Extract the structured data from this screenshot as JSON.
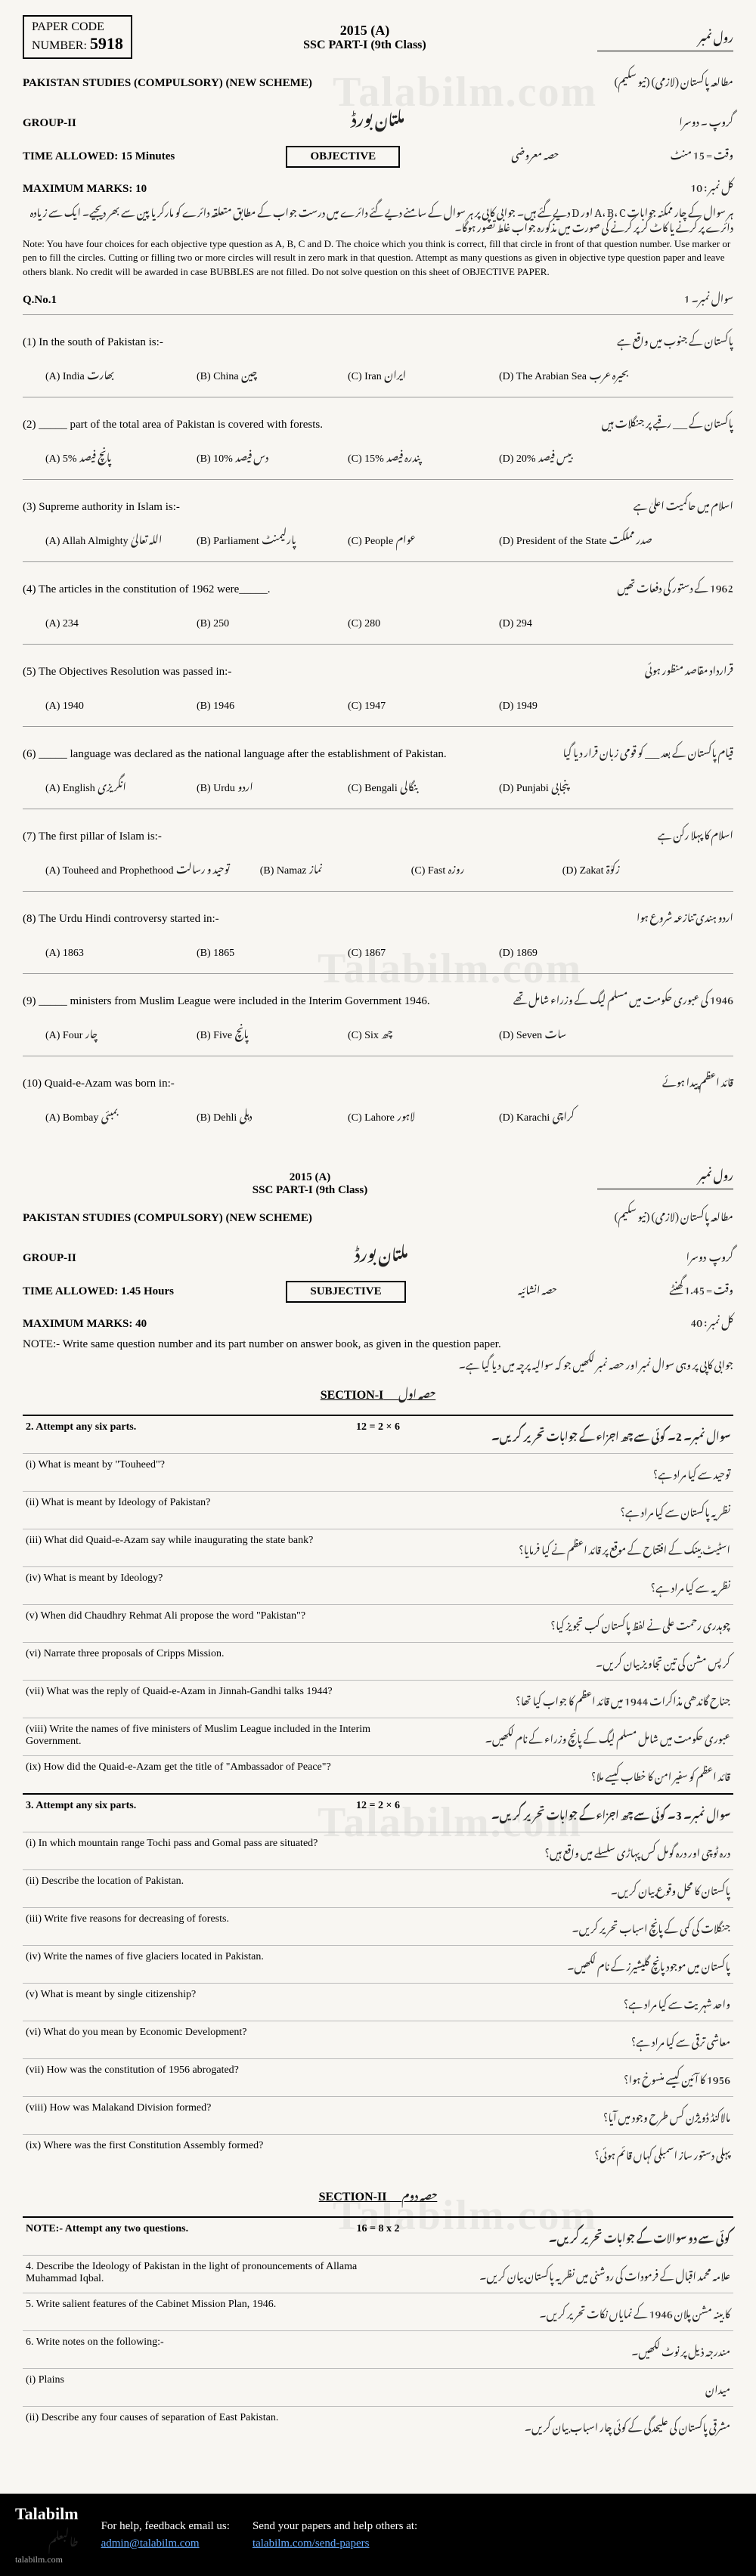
{
  "watermark_text": "Talabilm.com",
  "header": {
    "paper_code_label": "PAPER CODE",
    "number_label": "NUMBER:",
    "number": "5918",
    "year": "2015 (A)",
    "class": "SSC PART-I (9th Class)",
    "roll_label": "رول نمبر"
  },
  "objective": {
    "subject": "PAKISTAN STUDIES (COMPULSORY) (NEW SCHEME)",
    "subject_ur": "مطالعہ پاکستان (لازمی) (نیو سکیم)",
    "group": "GROUP-II",
    "group_ur": "گروپ ۔ دوسرا",
    "board_ur": "ملتان بورڈ",
    "time": "TIME ALLOWED: 15 Minutes",
    "time_ur": "وقت = 15 منٹ",
    "part_label": "OBJECTIVE",
    "part_ur": "حصہ معروضی",
    "marks": "MAXIMUM MARKS: 10",
    "marks_ur": "کل نمبر : 10",
    "note_ur": "ہر سوال کے چار ممکنہ جوابات A، B، C اور D دیے گئے ہیں۔ جوابی کاپی پر ہر سوال کے سامنے دیے گئے دائرے میں درست جواب کے مطابق متعلقہ دائرے کو مارکر یا پین سے بھر دیجیے۔ ایک سے زیادہ دائرے پر کرنے یا کاٹ کر پر کرنے کی صورت میں مذکورہ جواب غلط تصور ہوگا۔",
    "note_en": "Note: You have four choices for each objective type question as A, B, C and D. The choice which you think is correct, fill that circle in front of that question number. Use marker or pen to fill the circles. Cutting or filling two or more circles will result in zero mark in that question. Attempt as many questions as given in objective type question paper and leave others blank. No credit will be awarded in case BUBBLES are not filled. Do not solve question on this sheet of OBJECTIVE PAPER.",
    "qno": "Q.No.1",
    "qno_ur": "سوال نمبر۔ 1",
    "questions": [
      {
        "n": "(1)",
        "stem_en": "In the south of Pakistan is:-",
        "stem_ur": "پاکستان کے جنوب میں واقع ہے",
        "opts": [
          {
            "l": "(A) India",
            "u": "بھارت"
          },
          {
            "l": "(B) China",
            "u": "چین"
          },
          {
            "l": "(C) Iran",
            "u": "ایران"
          },
          {
            "l": "(D) The Arabian Sea",
            "u": "بحیرہ عرب"
          }
        ]
      },
      {
        "n": "(2)",
        "stem_en": "_____ part of the total area of Pakistan is covered with forests.",
        "stem_ur": "پاکستان کے ___ رقبے پر جنگلات ہیں",
        "opts": [
          {
            "l": "(A) 5%",
            "u": "پانچ فیصد"
          },
          {
            "l": "(B) 10%",
            "u": "دس فیصد"
          },
          {
            "l": "(C) 15%",
            "u": "پندرہ فیصد"
          },
          {
            "l": "(D) 20%",
            "u": "بیس فیصد"
          }
        ]
      },
      {
        "n": "(3)",
        "stem_en": "Supreme authority in Islam is:-",
        "stem_ur": "اسلام میں حاکمیت اعلیٰ ہے",
        "opts": [
          {
            "l": "(A) Allah Almighty",
            "u": "اللہ تعالیٰ"
          },
          {
            "l": "(B) Parliament",
            "u": "پارلیمنٹ"
          },
          {
            "l": "(C) People",
            "u": "عوام"
          },
          {
            "l": "(D) President of the State",
            "u": "صدر مملکت"
          }
        ]
      },
      {
        "n": "(4)",
        "stem_en": "The articles in the constitution of 1962 were_____.",
        "stem_ur": "1962 کے دستور کی دفعات تھیں",
        "opts": [
          {
            "l": "(A) 234",
            "u": ""
          },
          {
            "l": "(B) 250",
            "u": ""
          },
          {
            "l": "(C) 280",
            "u": ""
          },
          {
            "l": "(D) 294",
            "u": ""
          }
        ]
      },
      {
        "n": "(5)",
        "stem_en": "The Objectives Resolution was passed in:-",
        "stem_ur": "قرارداد مقاصد منظور ہوئی",
        "opts": [
          {
            "l": "(A) 1940",
            "u": ""
          },
          {
            "l": "(B) 1946",
            "u": ""
          },
          {
            "l": "(C) 1947",
            "u": ""
          },
          {
            "l": "(D) 1949",
            "u": ""
          }
        ]
      },
      {
        "n": "(6)",
        "stem_en": "_____ language was declared as the national language after the establishment of Pakistan.",
        "stem_ur": "قیام پاکستان کے بعد ___ کو قومی زبان قرار دیا گیا",
        "opts": [
          {
            "l": "(A) English",
            "u": "انگریزی"
          },
          {
            "l": "(B) Urdu",
            "u": "اردو"
          },
          {
            "l": "(C) Bengali",
            "u": "بنگالی"
          },
          {
            "l": "(D) Punjabi",
            "u": "پنجابی"
          }
        ]
      },
      {
        "n": "(7)",
        "stem_en": "The first pillar of Islam is:-",
        "stem_ur": "اسلام کا پہلا رکن ہے",
        "opts": [
          {
            "l": "(A) Touheed and Prophethood",
            "u": "توحید و رسالت"
          },
          {
            "l": "(B) Namaz",
            "u": "نماز"
          },
          {
            "l": "(C) Fast",
            "u": "روزہ"
          },
          {
            "l": "(D) Zakat",
            "u": "زکوٰۃ"
          }
        ]
      },
      {
        "n": "(8)",
        "stem_en": "The Urdu Hindi controversy started in:-",
        "stem_ur": "اردو ہندی تنازعہ شروع ہوا",
        "opts": [
          {
            "l": "(A) 1863",
            "u": ""
          },
          {
            "l": "(B) 1865",
            "u": ""
          },
          {
            "l": "(C) 1867",
            "u": ""
          },
          {
            "l": "(D) 1869",
            "u": ""
          }
        ]
      },
      {
        "n": "(9)",
        "stem_en": "_____ ministers from Muslim League were included in the Interim Government 1946.",
        "stem_ur": "1946 کی عبوری حکومت میں مسلم لیگ کے وزراء شامل تھے",
        "opts": [
          {
            "l": "(A) Four",
            "u": "چار"
          },
          {
            "l": "(B) Five",
            "u": "پانچ"
          },
          {
            "l": "(C) Six",
            "u": "چھ"
          },
          {
            "l": "(D) Seven",
            "u": "سات"
          }
        ]
      },
      {
        "n": "(10)",
        "stem_en": "Quaid-e-Azam was born in:-",
        "stem_ur": "قائد اعظم پیدا ہوئے",
        "opts": [
          {
            "l": "(A) Bombay",
            "u": "بمبئی"
          },
          {
            "l": "(B) Dehli",
            "u": "دہلی"
          },
          {
            "l": "(C) Lahore",
            "u": "لاہور"
          },
          {
            "l": "(D) Karachi",
            "u": "کراچی"
          }
        ]
      }
    ]
  },
  "subjective": {
    "year": "2015 (A)",
    "class": "SSC PART-I (9th Class)",
    "roll_ur": "رول نمبر",
    "subject": "PAKISTAN STUDIES (COMPULSORY) (NEW SCHEME)",
    "subject_ur": "مطالعہ پاکستان (لازمی) (نیو سکیم)",
    "group": "GROUP-II",
    "group_ur": "گروپ ـ دوسرا",
    "board_ur": "ملتان بورڈ",
    "time": "TIME ALLOWED: 1.45 Hours",
    "time_ur": "وقت = 1.45 گھنٹے",
    "part_label": "SUBJECTIVE",
    "part_ur": "حصہ انشائیہ",
    "marks": "MAXIMUM MARKS: 40",
    "marks_ur": "کل نمبر : 40",
    "note_en": "NOTE:- Write same question number and its part number on answer book, as given in the question paper.",
    "note_ur": "جوابی کاپی پر وہی سوال نمبر اور حصہ نمبر لکھیں جو کہ سوالیہ پرچہ میں دیا گیا ہے۔",
    "section1": "SECTION-I",
    "section1_ur": "حصہ اول",
    "q2_head": "2. Attempt any six parts.",
    "q2_marks": "12 = 2 × 6",
    "q2_ur": "سوال نمبر۔ 2۔ کوئی سے چھ اجزاء کے جوابات تحریر کریں۔",
    "q2": [
      {
        "n": "(i)",
        "en": "What is meant by \"Touheed\"?",
        "ur": "توحید سے کیا مراد ہے؟"
      },
      {
        "n": "(ii)",
        "en": "What is meant by Ideology of Pakistan?",
        "ur": "نظریہ پاکستان سے کیا مراد ہے؟"
      },
      {
        "n": "(iii)",
        "en": "What did Quaid-e-Azam say while inaugurating the state bank?",
        "ur": "اسٹیٹ بینک کے افتتاح کے موقع پر قائد اعظم نے کیا فرمایا؟"
      },
      {
        "n": "(iv)",
        "en": "What is meant by Ideology?",
        "ur": "نظریہ سے کیا مراد ہے؟"
      },
      {
        "n": "(v)",
        "en": "When did Chaudhry Rehmat Ali propose the word \"Pakistan\"?",
        "ur": "چوہدری رحمت علی نے لفظ پاکستان کب تجویز کیا؟"
      },
      {
        "n": "(vi)",
        "en": "Narrate three proposals of Cripps Mission.",
        "ur": "کرپس مشن کی تین تجاویز بیان کریں۔"
      },
      {
        "n": "(vii)",
        "en": "What was the reply of Quaid-e-Azam in Jinnah-Gandhi talks 1944?",
        "ur": "جناح گاندھی مذاکرات 1944 میں قائد اعظم کا جواب کیا تھا؟"
      },
      {
        "n": "(viii)",
        "en": "Write the names of five ministers of Muslim League included in the Interim Government.",
        "ur": "عبوری حکومت میں شامل مسلم لیگ کے پانچ وزراء کے نام لکھیں۔"
      },
      {
        "n": "(ix)",
        "en": "How did the Quaid-e-Azam get the title of \"Ambassador of Peace\"?",
        "ur": "قائد اعظم کو سفیر امن کا خطاب کیسے ملا؟"
      }
    ],
    "q3_head": "3. Attempt any six parts.",
    "q3_marks": "12 = 2 × 6",
    "q3_ur": "سوال نمبر۔ 3۔ کوئی سے چھ اجزاء کے جوابات تحریر کریں۔",
    "q3": [
      {
        "n": "(i)",
        "en": "In which mountain range Tochi pass and Gomal pass are situated?",
        "ur": "درہ ٹوچی اور درہ گومل کس پہاڑی سلسلے میں واقع ہیں؟"
      },
      {
        "n": "(ii)",
        "en": "Describe the location of Pakistan.",
        "ur": "پاکستان کا محل وقوع بیان کریں۔"
      },
      {
        "n": "(iii)",
        "en": "Write five reasons for decreasing of forests.",
        "ur": "جنگلات کی کمی کے پانچ اسباب تحریر کریں۔"
      },
      {
        "n": "(iv)",
        "en": "Write the names of five glaciers located in Pakistan.",
        "ur": "پاکستان میں موجود پانچ گلیشیرز کے نام لکھیں۔"
      },
      {
        "n": "(v)",
        "en": "What is meant by single citizenship?",
        "ur": "واحد شہریت سے کیا مراد ہے؟"
      },
      {
        "n": "(vi)",
        "en": "What do you mean by Economic Development?",
        "ur": "معاشی ترقی سے کیا مراد ہے؟"
      },
      {
        "n": "(vii)",
        "en": "How was the constitution of 1956 abrogated?",
        "ur": "1956 کا آئین کیسے منسوخ ہوا؟"
      },
      {
        "n": "(viii)",
        "en": "How was Malakand Division formed?",
        "ur": "مالاکنڈ ڈویژن کس طرح وجود میں آیا؟"
      },
      {
        "n": "(ix)",
        "en": "Where was the first Constitution Assembly formed?",
        "ur": "پہلی دستور ساز اسمبلی کہاں قائم ہوئی؟"
      }
    ],
    "section2": "SECTION-II",
    "section2_ur": "حصہ دوم",
    "lq_note_en": "NOTE:- Attempt any two questions.",
    "lq_marks": "16 = 8 x 2",
    "lq_note_ur": "کوئی سے دو سوالات کے جوابات تحریر کریں۔",
    "lq": [
      {
        "n": "4.",
        "en": "Describe the Ideology of Pakistan in the light of pronouncements of Allama Muhammad Iqbal.",
        "ur": "علامہ محمد اقبال کے فرمودات کی روشنی میں نظریہ پاکستان بیان کریں۔"
      },
      {
        "n": "5.",
        "en": "Write salient features of the Cabinet Mission Plan, 1946.",
        "ur": "کابینہ مشن پلان 1946 کے نمایاں نکات تحریر کریں۔"
      },
      {
        "n": "6.",
        "en": "Write notes on the following:-",
        "ur": "مندرجہ ذیل پر نوٹ لکھیں۔"
      },
      {
        "n": "(i)",
        "en": "Plains",
        "ur": "میدان"
      },
      {
        "n": "(ii)",
        "en": "Describe any four causes of separation of East Pakistan.",
        "ur": "مشرقی پاکستان کی علیحدگی کے کوئی چار اسباب بیان کریں۔"
      }
    ]
  },
  "footer": {
    "logo": "Talabilm",
    "logo_ur": "طالبعلم",
    "url": "talabilm.com",
    "help": "For help, feedback email us:",
    "email": "admin@talabilm.com",
    "send": "Send your papers and help others at:",
    "send_url": "talabilm.com/send-papers"
  }
}
